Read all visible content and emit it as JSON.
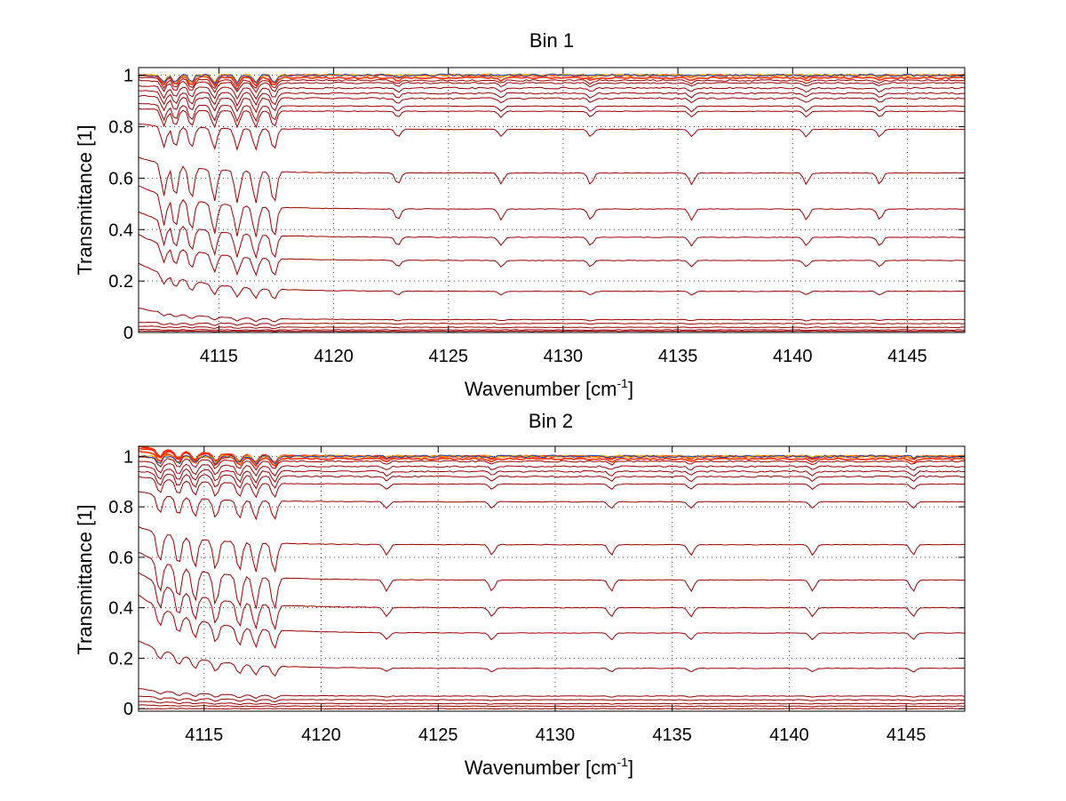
{
  "chart_data": [
    {
      "type": "line",
      "title": "Bin 1",
      "xlabel": "Wavenumber [cm",
      "xlabel_sup": "-1",
      "xlabel_end": "]",
      "ylabel": "Transmittance [1]",
      "xlim": [
        4111.5,
        4147.5
      ],
      "ylim": [
        0,
        1.03
      ],
      "xticks": [
        4115,
        4120,
        4125,
        4130,
        4135,
        4140,
        4145
      ],
      "yticks": [
        0,
        0.2,
        0.4,
        0.6,
        0.8,
        1
      ],
      "ytick_labels": [
        "0",
        "0.2",
        "0.4",
        "0.6",
        "0.8",
        "1"
      ],
      "grid": true,
      "levels": [
        0.005,
        0.01,
        0.02,
        0.035,
        0.05,
        0.16,
        0.28,
        0.37,
        0.48,
        0.62,
        0.79,
        0.86,
        0.88,
        0.91,
        0.93,
        0.95,
        0.97,
        0.98,
        0.99,
        1.0
      ],
      "left_start_values": [
        0.006,
        0.012,
        0.025,
        0.04,
        0.095,
        0.27,
        0.38,
        0.47,
        0.57,
        0.68,
        0.81,
        0.87,
        0.89,
        0.92,
        0.94,
        0.96,
        0.98,
        0.99,
        1.0,
        1.0
      ],
      "absorption_lines": [
        4112.6,
        4113.1,
        4113.8,
        4114.8,
        4115.8,
        4116.6,
        4117.4,
        4122.8,
        4127.3,
        4131.2,
        4135.6,
        4140.6,
        4143.8
      ],
      "colors": [
        "#8b0000",
        "#c40000",
        "#ff2a00",
        "#ff8c00",
        "#e8c000",
        "#2040c0"
      ]
    },
    {
      "type": "line",
      "title": "Bin 2",
      "xlabel": "Wavenumber [cm",
      "xlabel_sup": "-1",
      "xlabel_end": "]",
      "ylabel": "Transmittance [1]",
      "xlim": [
        4112.2,
        4147.5
      ],
      "ylim": [
        -0.01,
        1.04
      ],
      "xticks": [
        4115,
        4120,
        4125,
        4130,
        4135,
        4140,
        4145
      ],
      "yticks": [
        0,
        0.2,
        0.4,
        0.6,
        0.8,
        1
      ],
      "ytick_labels": [
        "0",
        "0.2",
        "0.4",
        "0.6",
        "0.8",
        "1"
      ],
      "grid": true,
      "levels": [
        0.0,
        0.01,
        0.02,
        0.035,
        0.05,
        0.16,
        0.3,
        0.4,
        0.51,
        0.65,
        0.82,
        0.89,
        0.92,
        0.94,
        0.96,
        0.98,
        0.99,
        1.0,
        1.0,
        1.0
      ],
      "left_start_values": [
        0.0,
        0.015,
        0.03,
        0.05,
        0.08,
        0.27,
        0.45,
        0.54,
        0.62,
        0.72,
        0.86,
        0.92,
        0.94,
        0.96,
        0.98,
        1.0,
        1.02,
        1.03,
        1.04,
        1.04
      ],
      "absorption_lines": [
        4113.1,
        4113.9,
        4114.6,
        4115.5,
        4116.5,
        4117.2,
        4118.0,
        4122.8,
        4127.3,
        4132.4,
        4135.8,
        4141.0,
        4145.3
      ],
      "colors": [
        "#8b0000",
        "#c40000",
        "#ff2a00",
        "#ff8c00",
        "#e8c000",
        "#2040c0"
      ]
    }
  ]
}
